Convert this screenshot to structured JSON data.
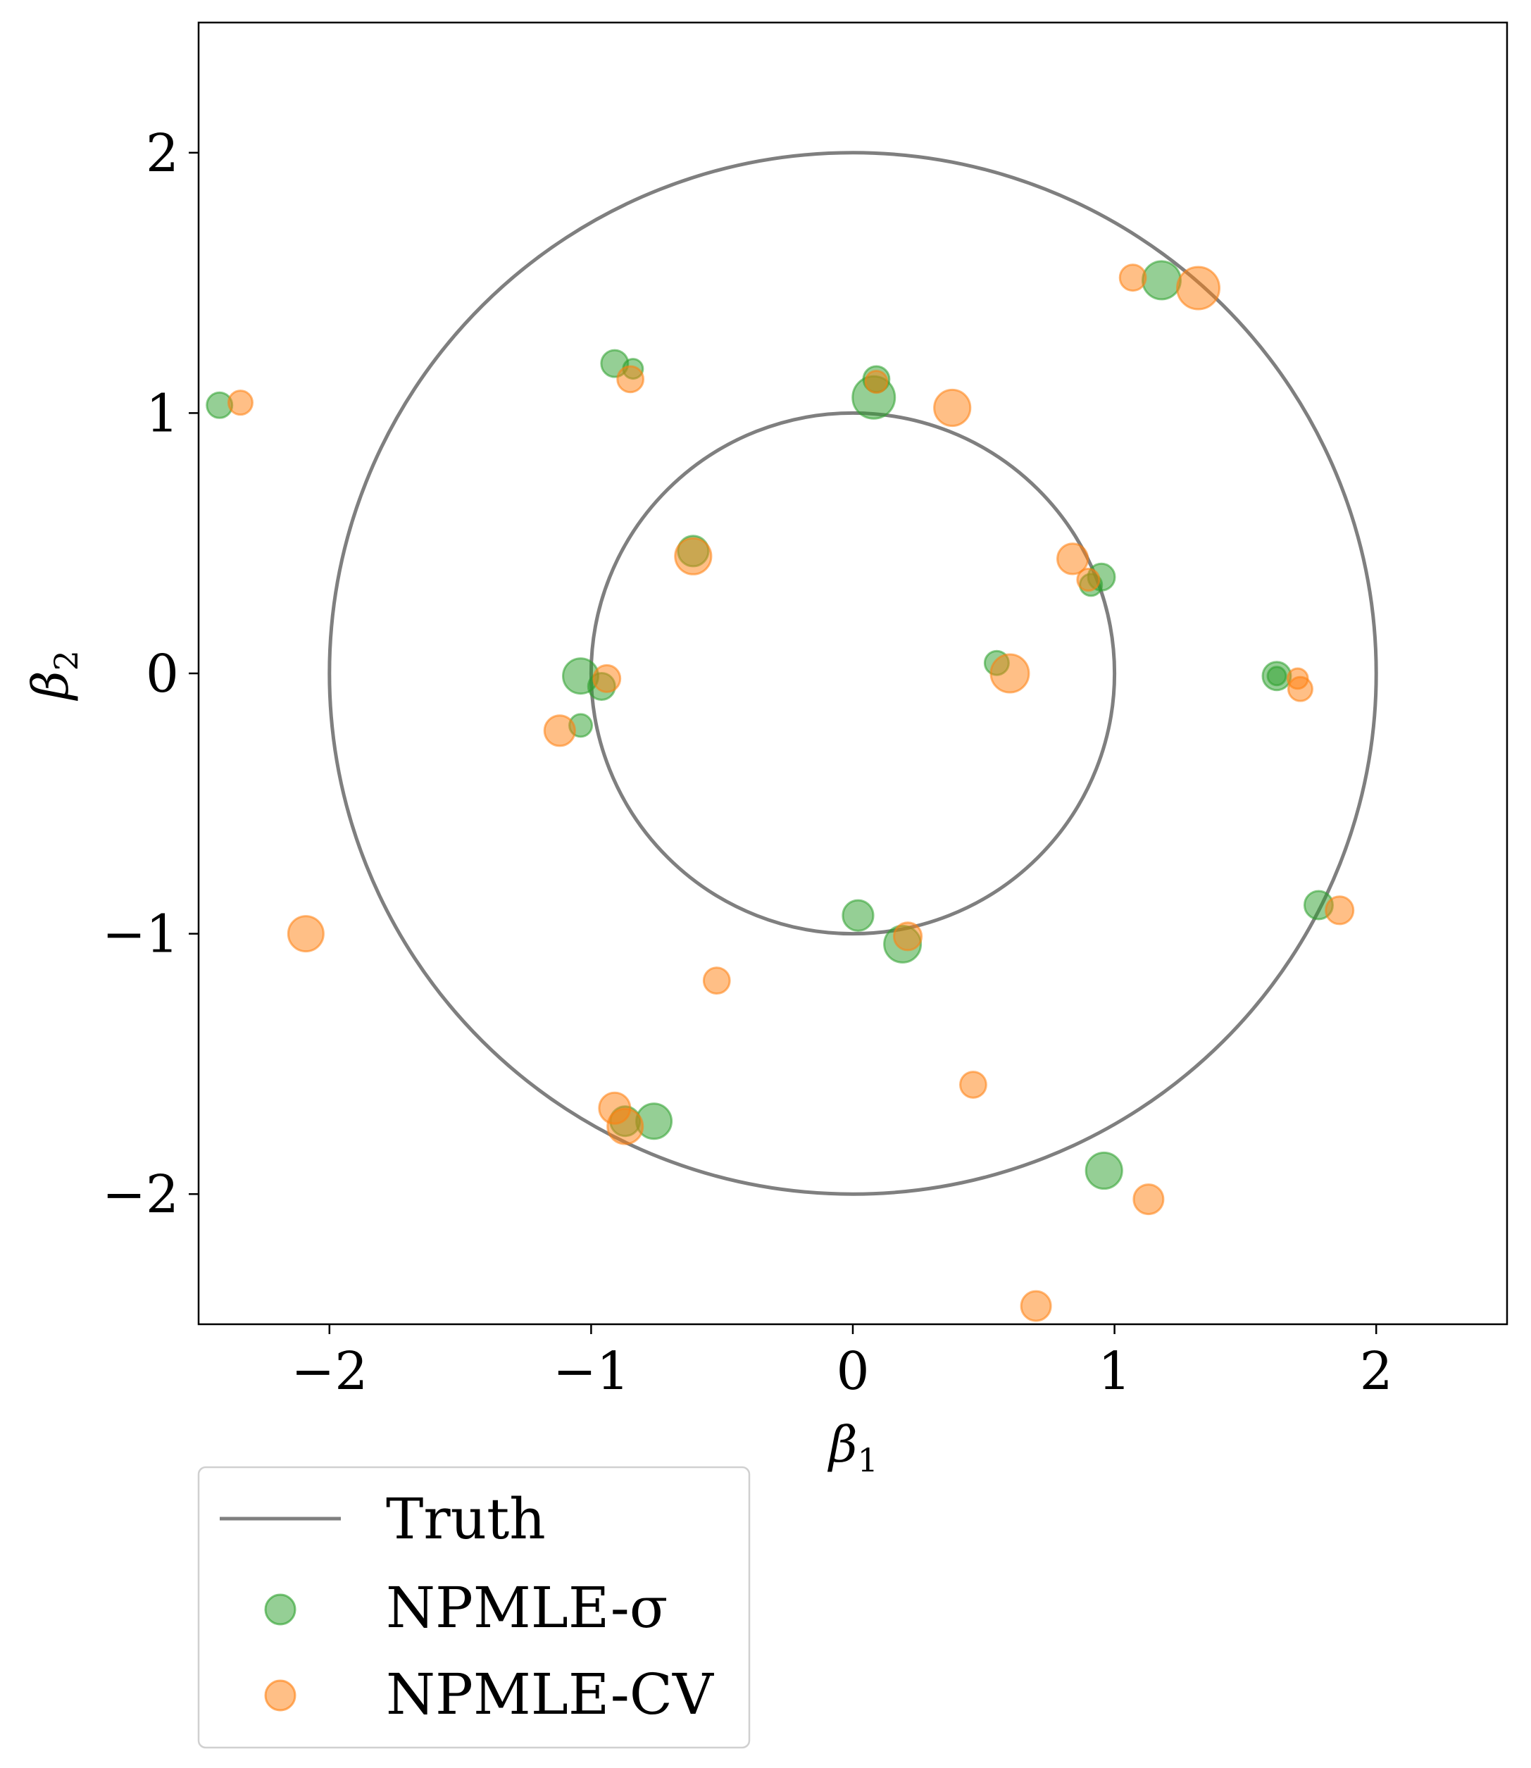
{
  "chart_data": {
    "type": "scatter",
    "title": "",
    "xlabel": "β1",
    "ylabel": "β2",
    "xlim": [
      -2.5,
      2.5
    ],
    "ylim": [
      -2.5,
      2.5
    ],
    "xticks": [
      -2,
      -1,
      0,
      1,
      2
    ],
    "yticks": [
      -2,
      -1,
      0,
      1,
      2
    ],
    "xtick_labels": [
      "−2",
      "−1",
      "0",
      "1",
      "2"
    ],
    "ytick_labels": [
      "−2",
      "−1",
      "0",
      "1",
      "2"
    ],
    "grid": false,
    "legend_placement": "below-left",
    "truth": {
      "name": "Truth",
      "color": "#7f7f7f",
      "circles": [
        {
          "center": [
            0,
            0
          ],
          "radius": 1
        },
        {
          "center": [
            0,
            0
          ],
          "radius": 2
        }
      ]
    },
    "series": [
      {
        "name": "NPMLE-σ",
        "color": "#2ca02c",
        "points": [
          {
            "x": -2.42,
            "y": 1.03,
            "weight": 0.4
          },
          {
            "x": -0.91,
            "y": 1.19,
            "weight": 0.45
          },
          {
            "x": -0.84,
            "y": 1.17,
            "weight": 0.2
          },
          {
            "x": 0.09,
            "y": 1.13,
            "weight": 0.42
          },
          {
            "x": 0.08,
            "y": 1.06,
            "weight": 1.0
          },
          {
            "x": 1.18,
            "y": 1.51,
            "weight": 0.85
          },
          {
            "x": -0.61,
            "y": 0.47,
            "weight": 0.58
          },
          {
            "x": 0.95,
            "y": 0.37,
            "weight": 0.45
          },
          {
            "x": 0.91,
            "y": 0.34,
            "weight": 0.28
          },
          {
            "x": 0.55,
            "y": 0.04,
            "weight": 0.35
          },
          {
            "x": -1.04,
            "y": -0.01,
            "weight": 0.75
          },
          {
            "x": -0.96,
            "y": -0.05,
            "weight": 0.45
          },
          {
            "x": -1.04,
            "y": -0.2,
            "weight": 0.3
          },
          {
            "x": 1.62,
            "y": -0.01,
            "weight": 0.5
          },
          {
            "x": 1.62,
            "y": -0.01,
            "weight": 0.15
          },
          {
            "x": 0.02,
            "y": -0.93,
            "weight": 0.58
          },
          {
            "x": 0.19,
            "y": -1.04,
            "weight": 0.8
          },
          {
            "x": 1.78,
            "y": -0.89,
            "weight": 0.5
          },
          {
            "x": -0.76,
            "y": -1.72,
            "weight": 0.75
          },
          {
            "x": -0.87,
            "y": -1.72,
            "weight": 0.55
          },
          {
            "x": 0.96,
            "y": -1.91,
            "weight": 0.78
          }
        ]
      },
      {
        "name": "NPMLE-CV",
        "color": "#ff7f0e",
        "points": [
          {
            "x": -2.34,
            "y": 1.04,
            "weight": 0.35
          },
          {
            "x": -0.85,
            "y": 1.13,
            "weight": 0.42
          },
          {
            "x": 0.09,
            "y": 1.12,
            "weight": 0.28
          },
          {
            "x": 0.38,
            "y": 1.02,
            "weight": 0.78
          },
          {
            "x": 1.07,
            "y": 1.52,
            "weight": 0.42
          },
          {
            "x": 1.32,
            "y": 1.48,
            "weight": 1.0
          },
          {
            "x": -0.61,
            "y": 0.45,
            "weight": 0.78
          },
          {
            "x": 0.84,
            "y": 0.44,
            "weight": 0.58
          },
          {
            "x": 0.9,
            "y": 0.36,
            "weight": 0.28
          },
          {
            "x": 0.6,
            "y": 0.0,
            "weight": 0.85
          },
          {
            "x": -0.94,
            "y": -0.02,
            "weight": 0.45
          },
          {
            "x": -1.12,
            "y": -0.22,
            "weight": 0.58
          },
          {
            "x": 1.7,
            "y": -0.02,
            "weight": 0.22
          },
          {
            "x": 1.71,
            "y": -0.06,
            "weight": 0.35
          },
          {
            "x": -2.09,
            "y": -1.0,
            "weight": 0.75
          },
          {
            "x": 0.21,
            "y": -1.01,
            "weight": 0.48
          },
          {
            "x": 1.86,
            "y": -0.91,
            "weight": 0.48
          },
          {
            "x": -0.52,
            "y": -1.18,
            "weight": 0.42
          },
          {
            "x": 0.46,
            "y": -1.58,
            "weight": 0.42
          },
          {
            "x": -0.91,
            "y": -1.67,
            "weight": 0.6
          },
          {
            "x": -0.87,
            "y": -1.74,
            "weight": 0.75
          },
          {
            "x": 1.13,
            "y": -2.02,
            "weight": 0.55
          },
          {
            "x": 0.7,
            "y": -2.43,
            "weight": 0.55
          }
        ]
      }
    ]
  }
}
